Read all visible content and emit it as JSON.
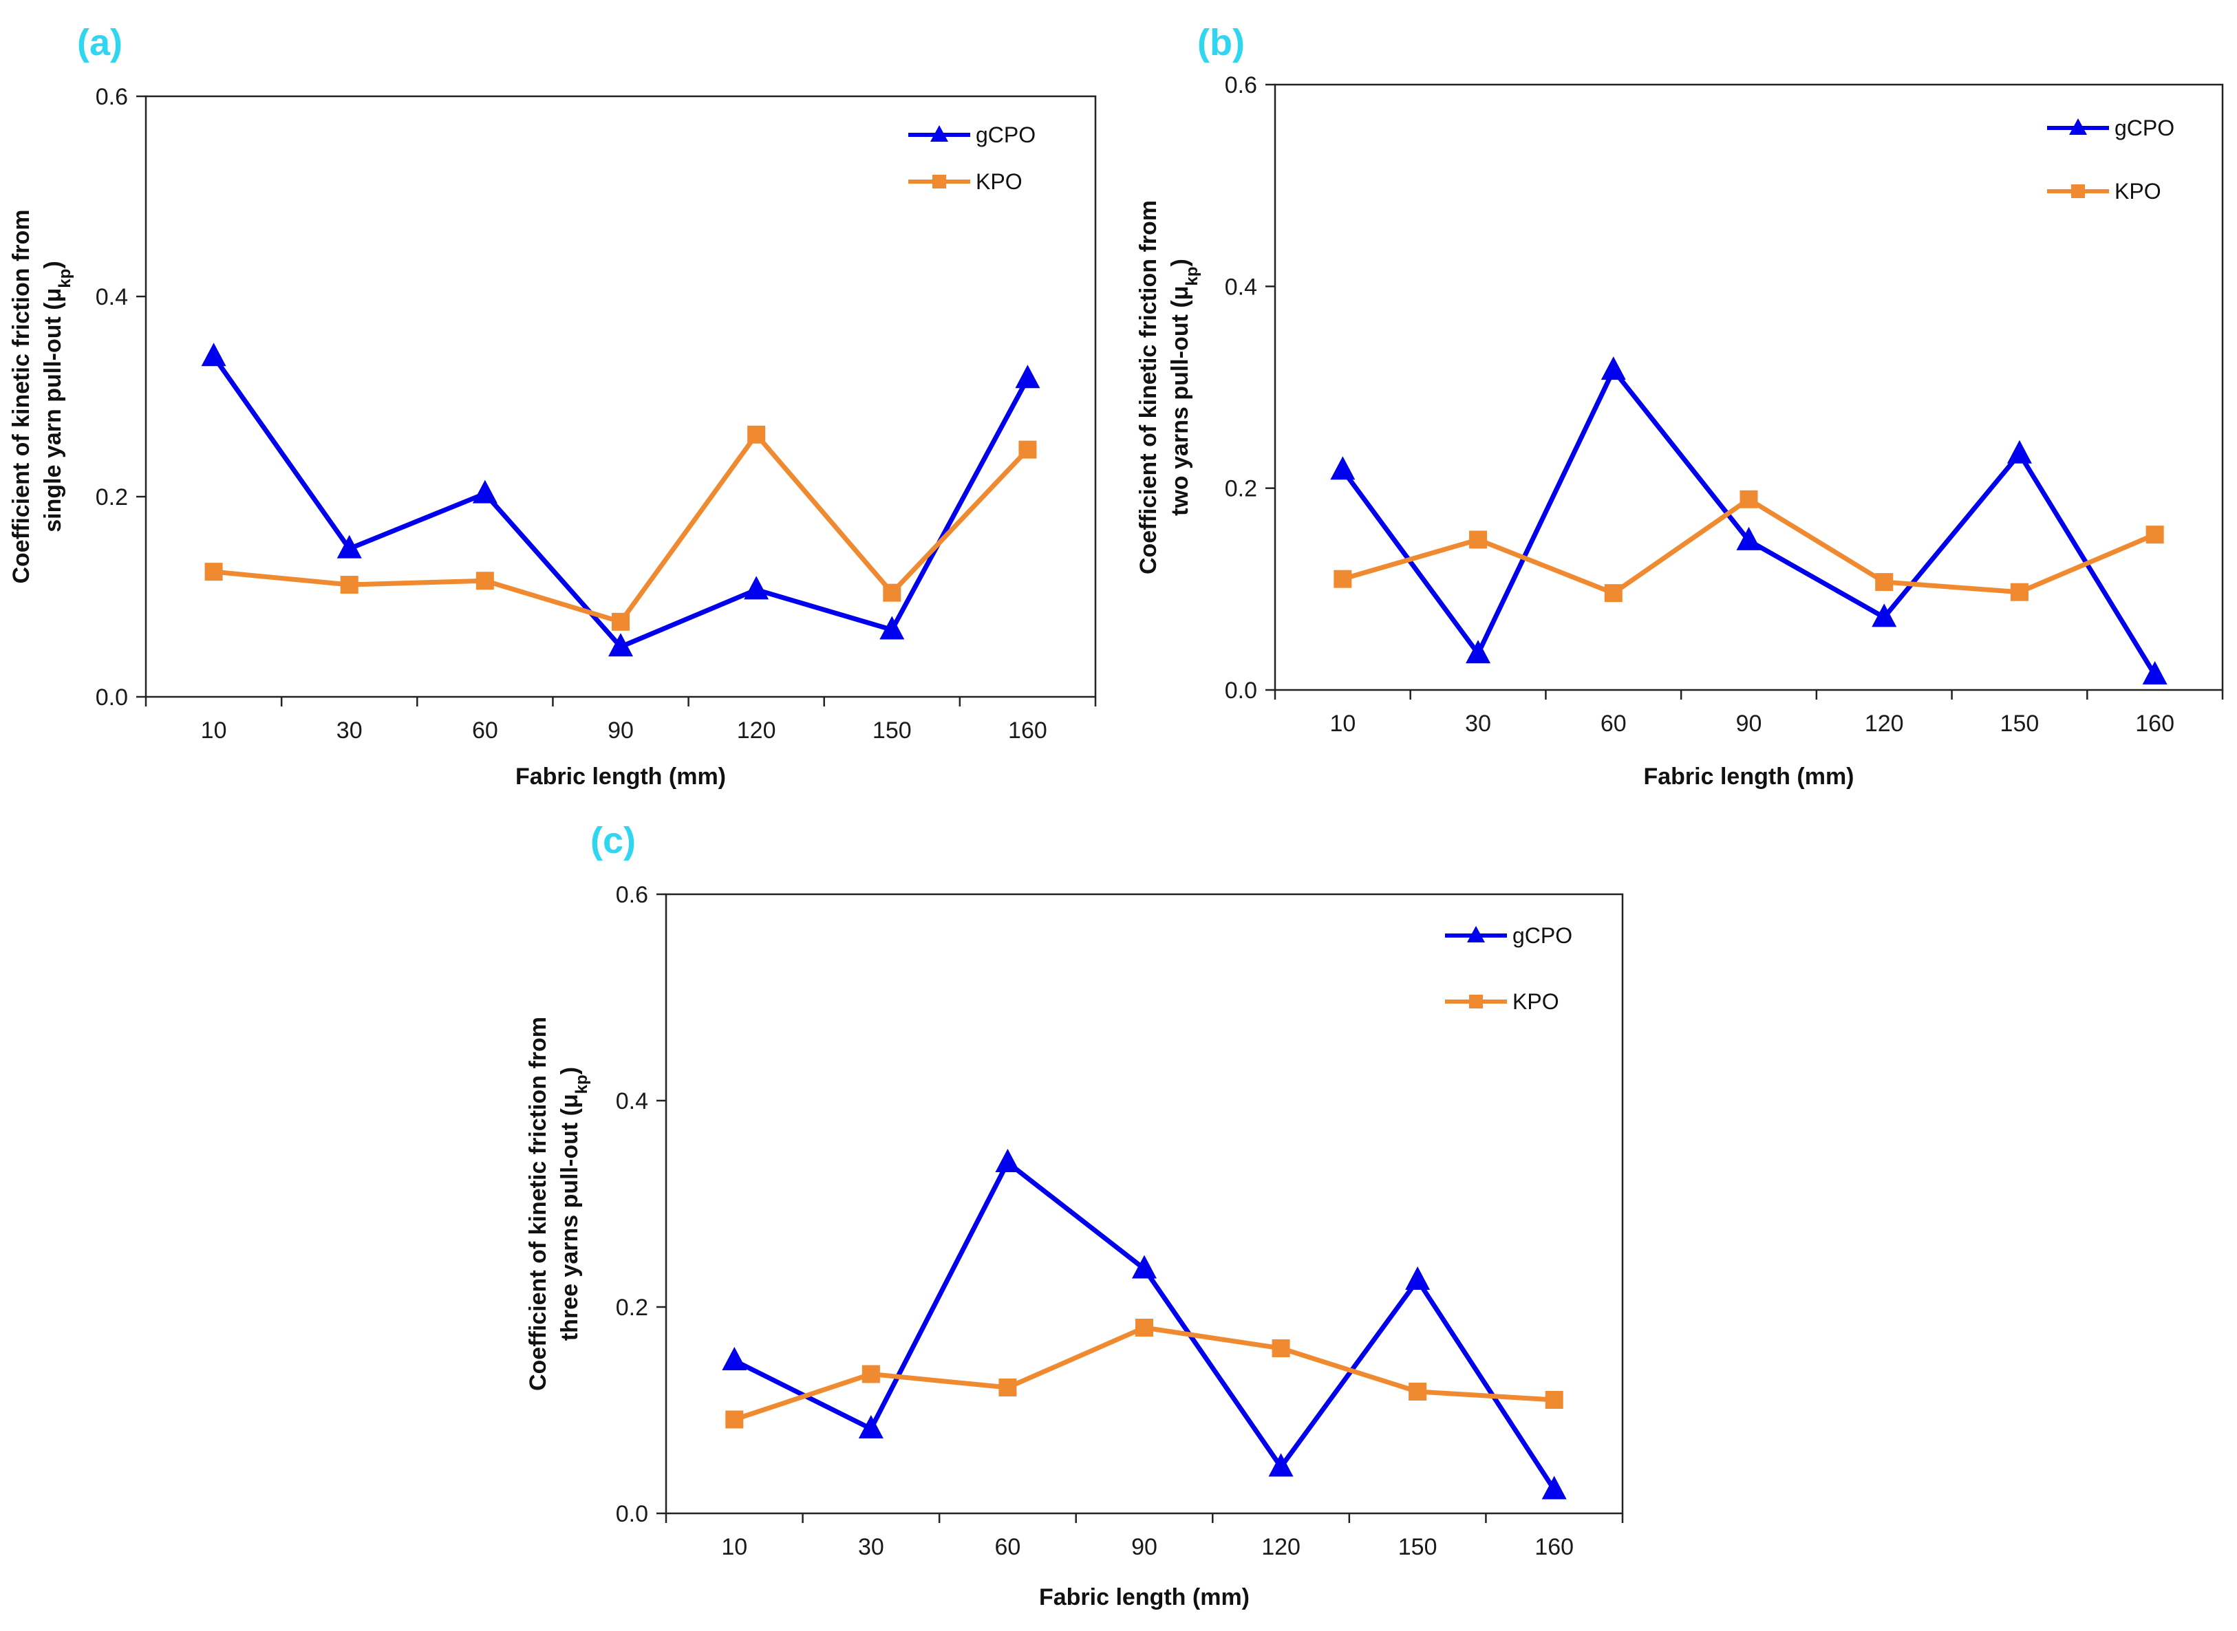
{
  "figure": {
    "panel_labels": [
      "(a)",
      "(b)",
      "(c)"
    ]
  },
  "chart_data": [
    {
      "type": "line",
      "panel": "(a)",
      "categories": [
        "10",
        "30",
        "60",
        "90",
        "120",
        "150",
        "160"
      ],
      "xlabel": "Fabric length (mm)",
      "ylabel_line1": "Coefficient of kinetic friction from",
      "ylabel_line2": "single yarn pull-out (μ",
      "ylabel_sub": "kp",
      "ylabel_end": ")",
      "ylim": [
        0,
        0.6
      ],
      "yticks": [
        "0.0",
        "0.2",
        "0.4",
        "0.6"
      ],
      "grid": false,
      "legend_position": "top-right",
      "series": [
        {
          "name": "gCPO",
          "marker": "triangle",
          "color": "#0000ee",
          "values": [
            0.34,
            0.148,
            0.203,
            0.05,
            0.107,
            0.067,
            0.318
          ]
        },
        {
          "name": "KPO",
          "marker": "square",
          "color": "#f08a30",
          "values": [
            0.125,
            0.112,
            0.116,
            0.075,
            0.262,
            0.104,
            0.247
          ]
        }
      ]
    },
    {
      "type": "line",
      "panel": "(b)",
      "categories": [
        "10",
        "30",
        "60",
        "90",
        "120",
        "150",
        "160"
      ],
      "xlabel": "Fabric length (mm)",
      "ylabel_line1": "Coefficient of kinetic friction from",
      "ylabel_line2": "two yarns pull-out (μ",
      "ylabel_sub": "kp",
      "ylabel_end": ")",
      "ylim": [
        0,
        0.6
      ],
      "yticks": [
        "0.0",
        "0.2",
        "0.4",
        "0.6"
      ],
      "grid": false,
      "legend_position": "top-right",
      "series": [
        {
          "name": "gCPO",
          "marker": "triangle",
          "color": "#0000ee",
          "values": [
            0.218,
            0.036,
            0.317,
            0.148,
            0.072,
            0.234,
            0.015
          ]
        },
        {
          "name": "KPO",
          "marker": "square",
          "color": "#f08a30",
          "values": [
            0.11,
            0.149,
            0.096,
            0.189,
            0.107,
            0.097,
            0.154
          ]
        }
      ]
    },
    {
      "type": "line",
      "panel": "(c)",
      "categories": [
        "10",
        "30",
        "60",
        "90",
        "120",
        "150",
        "160"
      ],
      "xlabel": "Fabric length (mm)",
      "ylabel_line1": "Coefficient of kinetic friction from",
      "ylabel_line2": "three yarns pull-out (μ",
      "ylabel_sub": "kp",
      "ylabel_end": ")",
      "ylim": [
        0,
        0.6
      ],
      "yticks": [
        "0.0",
        "0.2",
        "0.4",
        "0.6"
      ],
      "grid": false,
      "legend_position": "top-right",
      "series": [
        {
          "name": "gCPO",
          "marker": "triangle",
          "color": "#0000ee",
          "values": [
            0.148,
            0.082,
            0.34,
            0.237,
            0.045,
            0.226,
            0.023
          ]
        },
        {
          "name": "KPO",
          "marker": "square",
          "color": "#f08a30",
          "values": [
            0.091,
            0.135,
            0.122,
            0.18,
            0.16,
            0.118,
            0.11
          ]
        }
      ]
    }
  ]
}
